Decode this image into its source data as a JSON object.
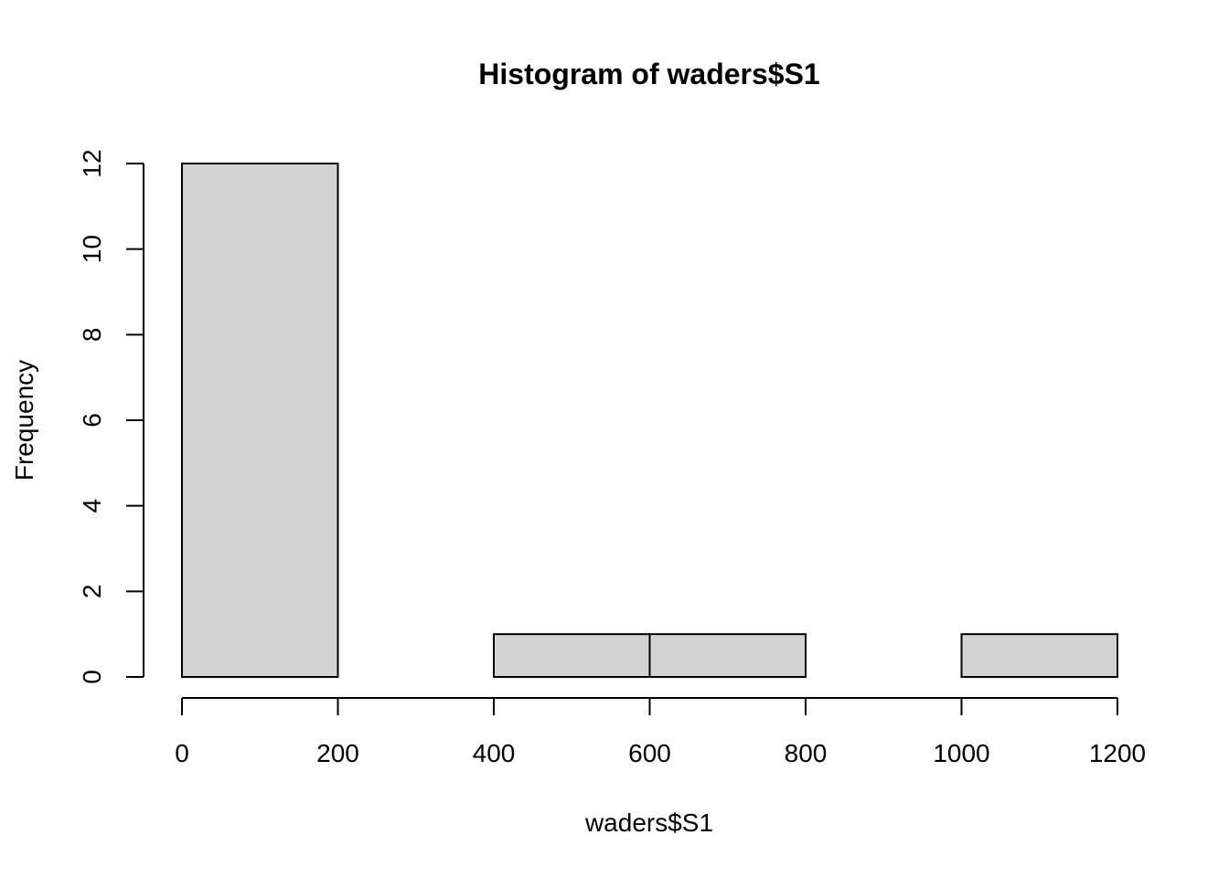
{
  "chart_data": {
    "type": "bar",
    "title": "Histogram of waders$S1",
    "xlabel": "waders$S1",
    "ylabel": "Frequency",
    "bin_edges": [
      0,
      200,
      400,
      600,
      800,
      1000,
      1200
    ],
    "values": [
      12,
      0,
      1,
      1,
      0,
      1
    ],
    "xlim": [
      0,
      1200
    ],
    "ylim": [
      0,
      12
    ],
    "x_ticks": [
      0,
      200,
      400,
      600,
      800,
      1000,
      1200
    ],
    "y_ticks": [
      0,
      2,
      4,
      6,
      8,
      10,
      12
    ],
    "bar_color": "#d3d3d3",
    "grid": false
  }
}
